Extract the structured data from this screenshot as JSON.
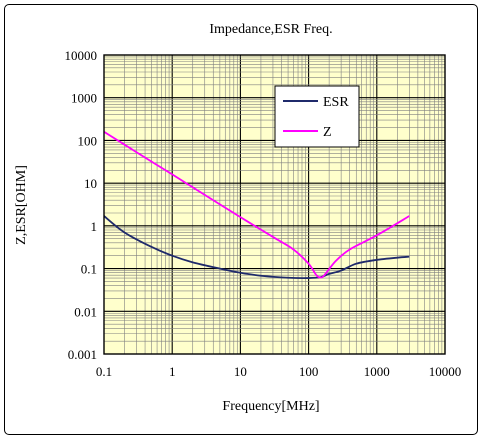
{
  "chart_data": {
    "type": "line",
    "title": "Impedance,ESR Freq.",
    "xlabel": "Frequency[MHz]",
    "ylabel": "Z,ESR[OHM]",
    "xscale": "log",
    "yscale": "log",
    "xlim": [
      0.1,
      10000
    ],
    "ylim": [
      0.001,
      10000
    ],
    "grid": true,
    "legend": "top-right",
    "xticks": [
      "0.1",
      "1",
      "10",
      "100",
      "1000",
      "10000"
    ],
    "yticks": [
      "0.001",
      "0.01",
      "0.1",
      "1",
      "10",
      "100",
      "1000",
      "10000"
    ],
    "colors": {
      "plot_background": "#ffffcc",
      "grid": "#808080",
      "axis": "#000000"
    },
    "series": [
      {
        "name": "ESR",
        "color": "#1f2a6b",
        "points": [
          [
            0.1,
            1.7
          ],
          [
            0.2,
            0.7
          ],
          [
            0.5,
            0.32
          ],
          [
            1,
            0.2
          ],
          [
            2,
            0.14
          ],
          [
            5,
            0.1
          ],
          [
            10,
            0.08
          ],
          [
            20,
            0.068
          ],
          [
            50,
            0.061
          ],
          [
            100,
            0.06
          ],
          [
            150,
            0.063
          ],
          [
            200,
            0.075
          ],
          [
            300,
            0.09
          ],
          [
            500,
            0.13
          ],
          [
            1000,
            0.16
          ],
          [
            2000,
            0.18
          ],
          [
            3000,
            0.19
          ]
        ]
      },
      {
        "name": "Z",
        "color": "#ff00ff",
        "points": [
          [
            0.1,
            160
          ],
          [
            0.3,
            53
          ],
          [
            1,
            16
          ],
          [
            3,
            5.3
          ],
          [
            10,
            1.6
          ],
          [
            30,
            0.55
          ],
          [
            60,
            0.28
          ],
          [
            100,
            0.13
          ],
          [
            130,
            0.07
          ],
          [
            150,
            0.062
          ],
          [
            170,
            0.07
          ],
          [
            250,
            0.15
          ],
          [
            400,
            0.28
          ],
          [
            1000,
            0.6
          ],
          [
            3000,
            1.7
          ]
        ]
      }
    ]
  }
}
